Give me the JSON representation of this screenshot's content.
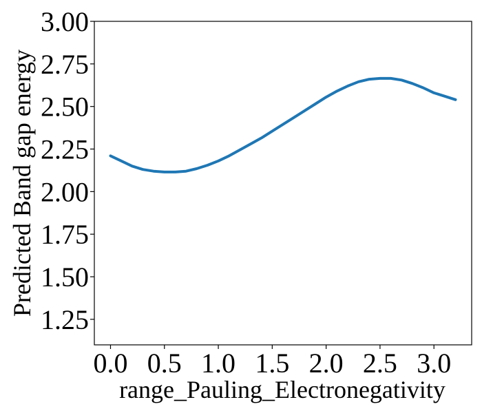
{
  "chart_data": {
    "type": "line",
    "title": "",
    "xlabel": "range_Pauling_Electronegativity",
    "ylabel": "Predicted Band gap energy",
    "xlim": [
      -0.15,
      3.35
    ],
    "ylim": [
      1.1,
      3.0
    ],
    "x_ticks": [
      0.0,
      0.5,
      1.0,
      1.5,
      2.0,
      2.5,
      3.0
    ],
    "x_tick_labels": [
      "0.0",
      "0.5",
      "1.0",
      "1.5",
      "2.0",
      "2.5",
      "3.0"
    ],
    "y_ticks": [
      1.25,
      1.5,
      1.75,
      2.0,
      2.25,
      2.5,
      2.75,
      3.0
    ],
    "y_tick_labels": [
      "1.25",
      "1.50",
      "1.75",
      "2.00",
      "2.25",
      "2.50",
      "2.75",
      "3.00"
    ],
    "grid": false,
    "legend": "none",
    "series": [
      {
        "color": "#1f77b4",
        "x": [
          0.0,
          0.1,
          0.2,
          0.3,
          0.4,
          0.5,
          0.6,
          0.7,
          0.8,
          0.9,
          1.0,
          1.1,
          1.2,
          1.3,
          1.4,
          1.5,
          1.6,
          1.7,
          1.8,
          1.9,
          2.0,
          2.1,
          2.2,
          2.3,
          2.4,
          2.5,
          2.6,
          2.7,
          2.8,
          2.9,
          3.0,
          3.1,
          3.2
        ],
        "y": [
          2.21,
          2.18,
          2.15,
          2.13,
          2.12,
          2.115,
          2.115,
          2.12,
          2.135,
          2.155,
          2.18,
          2.21,
          2.245,
          2.28,
          2.315,
          2.355,
          2.395,
          2.435,
          2.475,
          2.515,
          2.555,
          2.59,
          2.62,
          2.645,
          2.66,
          2.665,
          2.665,
          2.655,
          2.635,
          2.61,
          2.58,
          2.56,
          2.54
        ]
      }
    ]
  }
}
